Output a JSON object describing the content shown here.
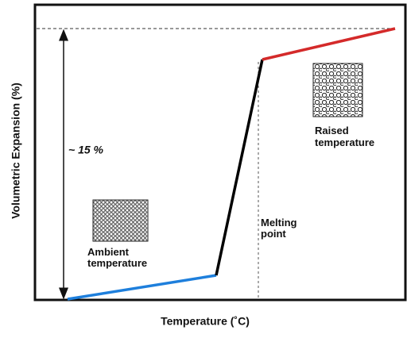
{
  "y_axis_label": "Volumetric Expansion (%)",
  "x_axis_label": "Temperature (˚C)",
  "annotations": {
    "expansion": "~ 15 %",
    "melting_point": [
      "Melting",
      "point"
    ],
    "ambient": [
      "Ambient",
      "temperature"
    ],
    "raised": [
      "Raised",
      "temperature"
    ]
  }
}
